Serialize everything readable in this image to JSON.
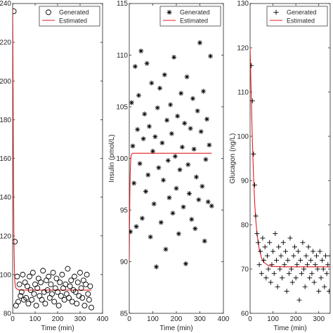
{
  "chart_data": [
    {
      "type": "scatter",
      "marker": "circle",
      "xlabel": "Time (min)",
      "ylabel": "",
      "xlim": [
        0,
        400
      ],
      "ylim": [
        80,
        240
      ],
      "xticks": [
        0,
        100,
        200,
        300,
        400
      ],
      "yticks": [
        80,
        100,
        120,
        140,
        160,
        180,
        200,
        220,
        240
      ],
      "legend": [
        "Generated",
        "Estimated"
      ],
      "legend_location": "top-right",
      "series": [
        {
          "name": "Generated",
          "x": [
            5,
            10,
            15,
            20,
            25,
            30,
            35,
            40,
            45,
            50,
            55,
            60,
            65,
            70,
            75,
            80,
            85,
            90,
            95,
            100,
            105,
            110,
            115,
            120,
            125,
            130,
            135,
            140,
            145,
            150,
            155,
            160,
            165,
            170,
            175,
            180,
            185,
            190,
            195,
            200,
            205,
            210,
            215,
            220,
            225,
            230,
            235,
            240,
            245,
            250,
            255,
            260,
            265,
            270,
            275,
            280,
            285,
            290,
            295,
            300,
            305,
            310,
            315,
            320,
            325,
            330,
            335,
            340,
            345,
            350
          ],
          "y": [
            236,
            117,
            84,
            99,
            86,
            95,
            89,
            91,
            100,
            87,
            96,
            88,
            94,
            85,
            99,
            92,
            87,
            101,
            90,
            95,
            84,
            93,
            98,
            89,
            96,
            87,
            102,
            91,
            85,
            97,
            92,
            99,
            88,
            95,
            90,
            101,
            86,
            93,
            98,
            91,
            84,
            96,
            89,
            100,
            93,
            87,
            95,
            90,
            103,
            88,
            94,
            97,
            86,
            92,
            99,
            91,
            85,
            96,
            89,
            101,
            93,
            88,
            97,
            84,
            95,
            100,
            90,
            87,
            94,
            83
          ]
        },
        {
          "name": "Estimated",
          "x": [
            0,
            1,
            2,
            3,
            4,
            5,
            6,
            8,
            10,
            12,
            15,
            20,
            30,
            50,
            100,
            200,
            300,
            350
          ],
          "y": [
            238,
            220,
            195,
            168,
            145,
            127,
            115,
            102,
            96,
            94,
            93,
            92.5,
            92,
            92,
            92,
            92,
            92,
            92
          ]
        }
      ]
    },
    {
      "type": "scatter",
      "marker": "asterisk",
      "xlabel": "Time (min)",
      "ylabel": "Insulin (pmol/L)",
      "xlim": [
        0,
        400
      ],
      "ylim": [
        85,
        115
      ],
      "xticks": [
        0,
        100,
        200,
        300,
        400
      ],
      "yticks": [
        85,
        90,
        95,
        100,
        105,
        110,
        115
      ],
      "legend": [
        "Generated",
        "Estimated"
      ],
      "legend_location": "top-right",
      "series": [
        {
          "name": "Generated",
          "x": [
            5,
            10,
            15,
            20,
            25,
            30,
            35,
            40,
            45,
            50,
            55,
            60,
            65,
            70,
            75,
            80,
            85,
            90,
            95,
            100,
            105,
            110,
            115,
            120,
            125,
            130,
            135,
            140,
            145,
            150,
            155,
            160,
            165,
            170,
            175,
            180,
            185,
            190,
            195,
            200,
            205,
            210,
            215,
            220,
            225,
            230,
            235,
            240,
            245,
            250,
            255,
            260,
            265,
            270,
            275,
            280,
            285,
            290,
            295,
            300,
            305,
            310,
            315,
            320,
            325,
            330,
            335,
            340,
            345,
            350
          ],
          "y": [
            92.9,
            105.4,
            101.2,
            97.6,
            108.9,
            93.4,
            102.8,
            106.1,
            99.5,
            110.4,
            94.2,
            101.9,
            104.3,
            96.8,
            109.2,
            98.4,
            103.1,
            92.4,
            107.3,
            100.7,
            95.6,
            102.1,
            89.5,
            104.9,
            99.1,
            106.8,
            93.8,
            101.5,
            97.9,
            108.1,
            91.2,
            103.7,
            99.8,
            96.2,
            105.2,
            102.4,
            94.7,
            109.8,
            100.2,
            97.1,
            104.1,
            92.7,
            98.9,
            106.3,
            101.1,
            95.3,
            103.4,
            89.8,
            107.9,
            99.4,
            96.6,
            102.9,
            94.1,
            105.8,
            100.9,
            93.2,
            98.2,
            104.6,
            96.0,
            111.2,
            102.6,
            97.3,
            106.5,
            92.0,
            99.9,
            103.8,
            95.8,
            101.3,
            109.9,
            95.4
          ]
        },
        {
          "name": "Estimated",
          "x": [
            0,
            1,
            2,
            3,
            4,
            5,
            6,
            7,
            8,
            10,
            12,
            15,
            20,
            30,
            50,
            100,
            200,
            300,
            350
          ],
          "y": [
            90,
            93,
            95.5,
            97.3,
            98.5,
            99.3,
            99.8,
            100.1,
            100.3,
            100.4,
            100.45,
            100.5,
            100.5,
            100.5,
            100.5,
            100.5,
            100.5,
            100.5,
            100.5
          ]
        }
      ]
    },
    {
      "type": "scatter",
      "marker": "plus",
      "xlabel": "Time (min)",
      "ylabel": "Glucagon (ng/L)",
      "xlim": [
        0,
        350
      ],
      "ylim": [
        60,
        130
      ],
      "xticks": [
        0,
        100,
        200,
        300
      ],
      "yticks": [
        60,
        70,
        80,
        90,
        100,
        110,
        120,
        130
      ],
      "legend": [
        "Generated",
        "Estimated"
      ],
      "legend_location": "top-right",
      "series": [
        {
          "name": "Generated",
          "x": [
            5,
            10,
            15,
            20,
            25,
            30,
            35,
            40,
            45,
            50,
            55,
            60,
            65,
            70,
            75,
            80,
            85,
            90,
            95,
            100,
            105,
            110,
            115,
            120,
            125,
            130,
            135,
            140,
            145,
            150,
            155,
            160,
            165,
            170,
            175,
            180,
            185,
            190,
            195,
            200,
            205,
            210,
            215,
            220,
            225,
            230,
            235,
            240,
            245,
            250,
            255,
            260,
            265,
            270,
            275,
            280,
            285,
            290,
            295,
            300,
            305,
            310,
            315,
            320,
            325,
            330,
            335,
            340,
            345,
            350
          ],
          "y": [
            116,
            108,
            96,
            89,
            82,
            78,
            76,
            71,
            74,
            69,
            77,
            72,
            75,
            68,
            73,
            70,
            76,
            67,
            71,
            74,
            69,
            78,
            72,
            66,
            75,
            70,
            73,
            68,
            76,
            71,
            74,
            65,
            72,
            69,
            77,
            70,
            67,
            73,
            75,
            68,
            71,
            74,
            63,
            72,
            69,
            76,
            70,
            66,
            73,
            71,
            75,
            68,
            72,
            69,
            74,
            67,
            71,
            73,
            70,
            65,
            74,
            68,
            72,
            70,
            66,
            73,
            69,
            71,
            65,
            73
          ]
        },
        {
          "name": "Estimated",
          "x": [
            0,
            2,
            5,
            8,
            10,
            15,
            20,
            25,
            30,
            40,
            50,
            60,
            80,
            100,
            150,
            200,
            300,
            350
          ],
          "y": [
            120,
            116,
            109,
            103,
            99,
            91,
            85,
            81,
            78,
            74.5,
            72.5,
            71.5,
            70.8,
            70.6,
            70.5,
            70.5,
            70.5,
            70.5
          ]
        }
      ]
    }
  ]
}
